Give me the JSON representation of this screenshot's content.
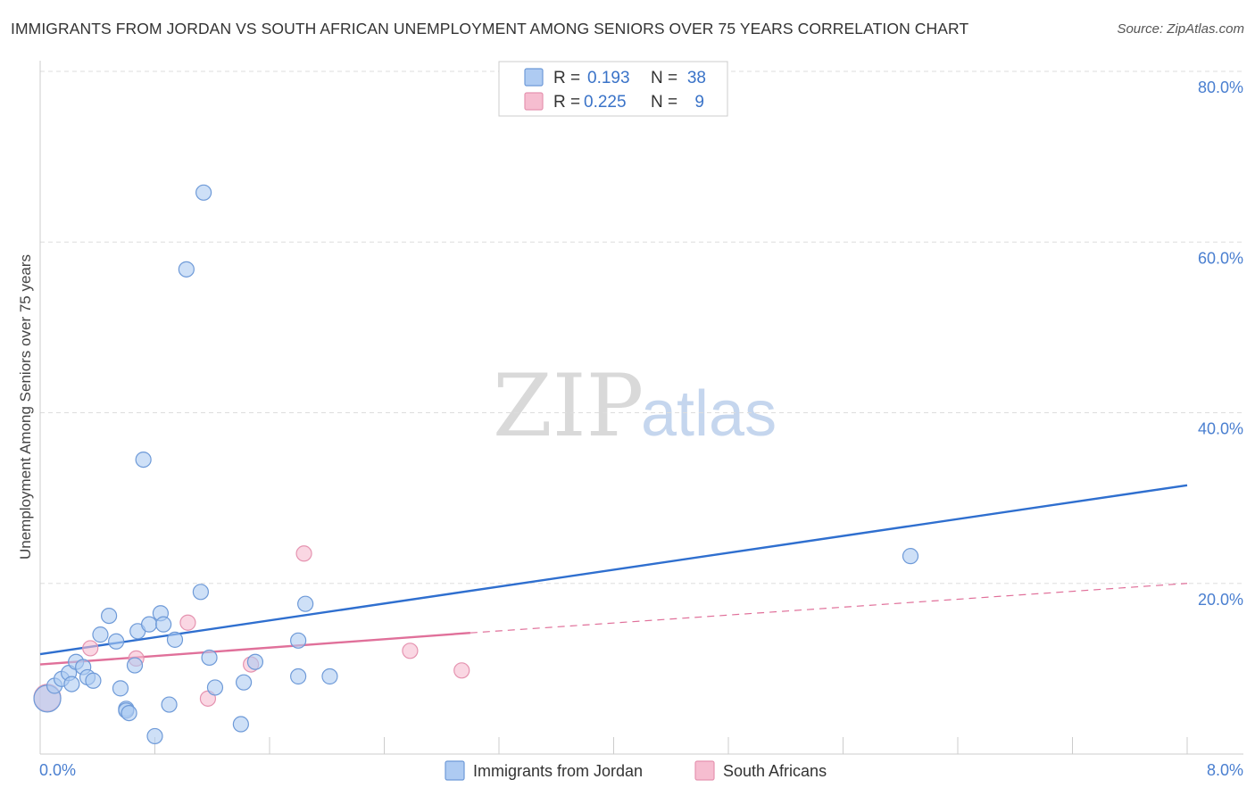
{
  "title": "IMMIGRANTS FROM JORDAN VS SOUTH AFRICAN UNEMPLOYMENT AMONG SENIORS OVER 75 YEARS CORRELATION CHART",
  "source": "Source: ZipAtlas.com",
  "watermark": {
    "zip": "ZIP",
    "atlas": "atlas"
  },
  "legend": {
    "r_label": "R =",
    "n_label": "N =",
    "rows": [
      {
        "r": "0.193",
        "n": "38"
      },
      {
        "r": "0.225",
        "n": "9"
      }
    ]
  },
  "colors": {
    "series1_fill": "#aecbf2",
    "series1_stroke": "#6e9ad8",
    "series1_line": "#2f6fcf",
    "series2_fill": "#f6bdd0",
    "series2_stroke": "#e593b0",
    "series2_line": "#e0709a",
    "tick_text": "#4a7fd0",
    "grid": "#dddddd"
  },
  "chart_data": {
    "type": "scatter",
    "title": "IMMIGRANTS FROM JORDAN VS SOUTH AFRICAN UNEMPLOYMENT AMONG SENIORS OVER 75 YEARS CORRELATION CHART",
    "xlabel": "",
    "ylabel": "Unemployment Among Seniors over 75 years",
    "xlim": [
      0,
      8
    ],
    "ylim": [
      0,
      80
    ],
    "x_tick_labels": [
      "0.0%",
      "8.0%"
    ],
    "y_tick_labels": [
      "20.0%",
      "40.0%",
      "60.0%",
      "80.0%"
    ],
    "y_ticks": [
      20,
      40,
      60,
      80
    ],
    "grid": true,
    "legend_position": "top-center",
    "series": [
      {
        "name": "Immigrants from Jordan",
        "r": 0.193,
        "n": 38,
        "trend": {
          "x": [
            0,
            8
          ],
          "y": [
            11.7,
            31.5
          ],
          "style": "solid"
        },
        "points": [
          [
            0.05,
            6.5
          ],
          [
            0.1,
            8.0
          ],
          [
            0.15,
            8.8
          ],
          [
            0.2,
            9.5
          ],
          [
            0.22,
            8.2
          ],
          [
            0.25,
            10.8
          ],
          [
            0.3,
            10.2
          ],
          [
            0.33,
            9.0
          ],
          [
            0.37,
            8.6
          ],
          [
            0.42,
            14.0
          ],
          [
            0.48,
            16.2
          ],
          [
            0.53,
            13.2
          ],
          [
            0.56,
            7.7
          ],
          [
            0.6,
            5.3
          ],
          [
            0.6,
            5.1
          ],
          [
            0.62,
            4.8
          ],
          [
            0.66,
            10.4
          ],
          [
            0.68,
            14.4
          ],
          [
            0.72,
            34.5
          ],
          [
            0.76,
            15.2
          ],
          [
            0.8,
            2.1
          ],
          [
            0.84,
            16.5
          ],
          [
            0.86,
            15.2
          ],
          [
            0.9,
            5.8
          ],
          [
            0.94,
            13.4
          ],
          [
            1.02,
            56.8
          ],
          [
            1.12,
            19.0
          ],
          [
            1.14,
            65.8
          ],
          [
            1.18,
            11.3
          ],
          [
            1.22,
            7.8
          ],
          [
            1.4,
            3.5
          ],
          [
            1.42,
            8.4
          ],
          [
            1.5,
            10.8
          ],
          [
            1.8,
            13.3
          ],
          [
            1.8,
            9.1
          ],
          [
            1.85,
            17.6
          ],
          [
            2.02,
            9.1
          ],
          [
            6.07,
            23.2
          ]
        ]
      },
      {
        "name": "South Africans",
        "r": 0.225,
        "n": 9,
        "trend": {
          "x": [
            0,
            3.0
          ],
          "y": [
            10.5,
            14.2
          ],
          "style": "solid",
          "extended": {
            "x": [
              3.0,
              8
            ],
            "y": [
              14.2,
              20.0
            ],
            "style": "dashed"
          }
        },
        "points": [
          [
            0.05,
            6.6
          ],
          [
            0.35,
            12.4
          ],
          [
            0.67,
            11.2
          ],
          [
            1.03,
            15.4
          ],
          [
            1.17,
            6.5
          ],
          [
            1.47,
            10.5
          ],
          [
            1.84,
            23.5
          ],
          [
            2.58,
            12.1
          ],
          [
            2.94,
            9.8
          ]
        ]
      }
    ]
  }
}
